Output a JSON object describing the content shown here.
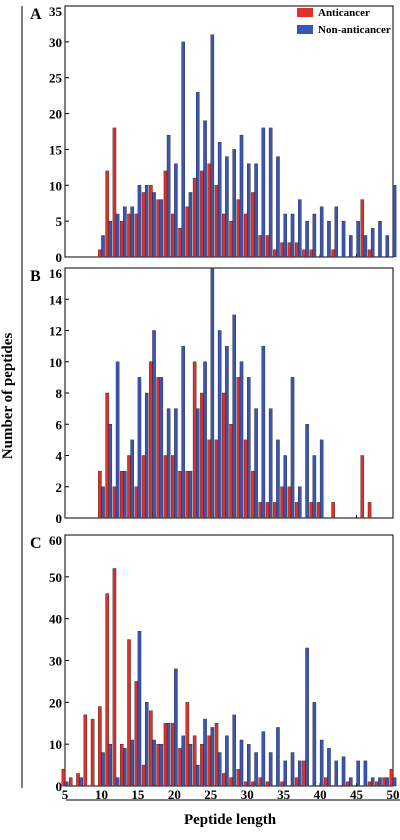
{
  "ylabel": "Number of peptides",
  "xlabel": "Peptide length",
  "x_ticks": [
    5,
    10,
    15,
    20,
    25,
    30,
    35,
    40,
    45,
    50
  ],
  "legend": [
    {
      "label": "Anticancer",
      "color": "#e0302a"
    },
    {
      "label": "Non-anticancer",
      "color": "#3b55b5"
    }
  ],
  "colors": {
    "anticancer": "#e0302a",
    "non_anticancer": "#3b55b5"
  },
  "chart_data": [
    {
      "type": "bar",
      "panel": "A",
      "ylim": [
        0,
        35
      ],
      "y_ticks": [
        0,
        5,
        10,
        15,
        20,
        25,
        30,
        35
      ],
      "x": [
        10,
        11,
        12,
        13,
        14,
        15,
        16,
        17,
        18,
        19,
        20,
        21,
        22,
        23,
        24,
        25,
        26,
        27,
        28,
        29,
        30,
        31,
        32,
        33,
        34,
        35,
        36,
        37,
        38,
        39,
        40,
        41,
        42,
        43,
        44,
        45,
        46,
        47,
        48,
        49,
        50
      ],
      "series": [
        {
          "name": "Anticancer",
          "values": [
            1,
            12,
            18,
            5,
            6,
            6,
            9,
            10,
            8,
            12,
            6,
            4,
            7,
            11,
            12,
            13,
            10,
            6,
            5,
            8,
            6,
            9,
            3,
            3,
            1,
            2,
            2,
            2,
            1,
            1,
            0,
            0,
            1,
            0,
            0,
            0,
            8,
            1,
            0,
            0,
            0
          ]
        },
        {
          "name": "Non-anticancer",
          "values": [
            3,
            5,
            6,
            7,
            7,
            10,
            10,
            9,
            8,
            17,
            13,
            30,
            9,
            23,
            19,
            31,
            16,
            14,
            15,
            17,
            13,
            13,
            18,
            18,
            14,
            6,
            6,
            8,
            5,
            6,
            7,
            5,
            7,
            5,
            3,
            5,
            3,
            4,
            5,
            3,
            10
          ]
        }
      ]
    },
    {
      "type": "bar",
      "panel": "B",
      "ylim": [
        0,
        16
      ],
      "y_ticks": [
        0,
        2,
        4,
        6,
        8,
        10,
        12,
        14,
        16
      ],
      "x": [
        10,
        11,
        12,
        13,
        14,
        15,
        16,
        17,
        18,
        19,
        20,
        21,
        22,
        23,
        24,
        25,
        26,
        27,
        28,
        29,
        30,
        31,
        32,
        33,
        34,
        35,
        36,
        37,
        38,
        39,
        40,
        41,
        42,
        43,
        44,
        45,
        46,
        47
      ],
      "series": [
        {
          "name": "Anticancer",
          "values": [
            3,
            8,
            2,
            3,
            4,
            2,
            4,
            10,
            9,
            4,
            4,
            3,
            3,
            10,
            8,
            5,
            5,
            8,
            6,
            9,
            5,
            3,
            1,
            1,
            1,
            2,
            2,
            1,
            0,
            1,
            1,
            0,
            1,
            0,
            0,
            0,
            4,
            1
          ]
        },
        {
          "name": "Non-anticancer",
          "values": [
            2,
            6,
            10,
            3,
            5,
            9,
            8,
            12,
            9,
            7,
            7,
            11,
            3,
            7,
            10,
            16,
            12,
            11,
            13,
            10,
            9,
            7,
            11,
            7,
            5,
            4,
            9,
            2,
            6,
            4,
            5,
            0,
            0,
            0,
            0,
            0,
            0,
            0
          ]
        }
      ]
    },
    {
      "type": "bar",
      "panel": "C",
      "ylim": [
        0,
        60
      ],
      "y_ticks": [
        0,
        10,
        20,
        30,
        40,
        50,
        60
      ],
      "x": [
        5,
        6,
        7,
        8,
        9,
        10,
        11,
        12,
        13,
        14,
        15,
        16,
        17,
        18,
        19,
        20,
        21,
        22,
        23,
        24,
        25,
        26,
        27,
        28,
        29,
        30,
        31,
        32,
        33,
        34,
        35,
        36,
        37,
        38,
        39,
        40,
        41,
        42,
        43,
        44,
        45,
        46,
        47,
        48,
        49,
        50
      ],
      "series": [
        {
          "name": "Anticancer",
          "values": [
            4,
            2,
            3,
            17,
            16,
            19,
            46,
            52,
            10,
            35,
            25,
            5,
            18,
            10,
            15,
            15,
            9,
            20,
            12,
            10,
            12,
            15,
            3,
            2,
            4,
            1,
            1,
            2,
            1,
            0,
            1,
            0,
            2,
            6,
            0,
            0,
            2,
            0,
            0,
            1,
            0,
            0,
            1,
            1,
            2,
            4
          ]
        },
        {
          "name": "Non-anticancer",
          "values": [
            1,
            0,
            2,
            0,
            0,
            8,
            10,
            2,
            9,
            11,
            37,
            20,
            11,
            10,
            15,
            28,
            12,
            10,
            5,
            16,
            14,
            8,
            12,
            17,
            11,
            10,
            8,
            13,
            8,
            14,
            6,
            8,
            6,
            33,
            20,
            11,
            9,
            6,
            7,
            2,
            6,
            6,
            2,
            2,
            2,
            2
          ]
        }
      ]
    }
  ]
}
